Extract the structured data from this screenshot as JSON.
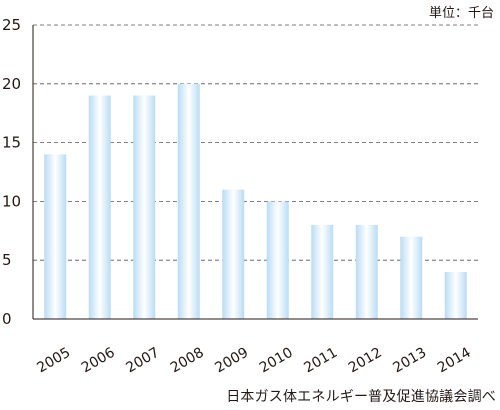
{
  "unit_label": "単位：千台",
  "source_label": "日本ガス体エネルギー普及促進協議会調べ",
  "chart_data": {
    "type": "bar",
    "title": "",
    "xlabel": "",
    "ylabel": "",
    "categories": [
      "2005",
      "2006",
      "2007",
      "2008",
      "2009",
      "2010",
      "2011",
      "2012",
      "2013",
      "2014"
    ],
    "values": [
      14,
      19,
      19,
      20,
      11,
      10,
      8,
      8,
      7,
      4
    ],
    "ylim": [
      0,
      25
    ],
    "yticks": [
      0,
      5,
      10,
      15,
      20,
      25
    ],
    "grid": true,
    "grid_style": "dashed",
    "legend": "none",
    "colors": {
      "bar_center": "#ffffff",
      "bar_edge": "#b9dcf4",
      "axis": "#231815",
      "grid": "#555555"
    }
  }
}
